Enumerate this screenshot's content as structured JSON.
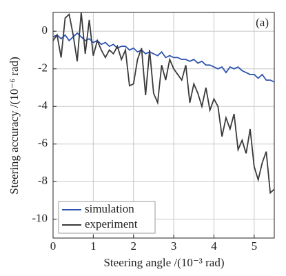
{
  "chart_data": {
    "type": "line",
    "annotation": "(a)",
    "x_label": "Steering angle /(10⁻³ rad)",
    "y_label": "Steering accuracy /(10⁻⁶ rad)",
    "x": [
      0,
      0.1,
      0.2,
      0.3,
      0.4,
      0.5,
      0.6,
      0.7,
      0.8,
      0.9,
      1.0,
      1.1,
      1.2,
      1.3,
      1.4,
      1.5,
      1.6,
      1.7,
      1.8,
      1.9,
      2.0,
      2.1,
      2.2,
      2.3,
      2.4,
      2.5,
      2.6,
      2.7,
      2.8,
      2.9,
      3.0,
      3.1,
      3.2,
      3.3,
      3.4,
      3.5,
      3.6,
      3.7,
      3.8,
      3.9,
      4.0,
      4.1,
      4.2,
      4.3,
      4.4,
      4.5,
      4.6,
      4.7,
      4.8,
      4.9,
      5.0,
      5.1,
      5.2,
      5.3,
      5.4,
      5.5
    ],
    "series": [
      {
        "name": "simulation",
        "color": "#2f55b0",
        "values": [
          -0.3,
          -0.2,
          -0.4,
          -0.2,
          -0.5,
          -0.3,
          -0.1,
          -0.3,
          -0.5,
          -0.4,
          -0.6,
          -0.5,
          -0.7,
          -0.6,
          -0.8,
          -0.7,
          -0.9,
          -0.8,
          -0.8,
          -1.0,
          -0.9,
          -1.1,
          -1.0,
          -1.2,
          -1.1,
          -1.2,
          -1.3,
          -1.1,
          -1.4,
          -1.3,
          -1.4,
          -1.4,
          -1.5,
          -1.5,
          -1.6,
          -1.5,
          -1.7,
          -1.6,
          -1.8,
          -1.8,
          -1.9,
          -2.0,
          -1.9,
          -2.2,
          -1.9,
          -2.0,
          -1.9,
          -2.1,
          -2.2,
          -2.3,
          -2.3,
          -2.5,
          -2.3,
          -2.6,
          -2.6,
          -2.7
        ]
      },
      {
        "name": "experiment",
        "color": "#3a3a3a",
        "values": [
          -0.5,
          -0.2,
          -1.4,
          0.7,
          0.9,
          -0.2,
          -1.6,
          1.0,
          -1.2,
          0.6,
          -1.3,
          -0.5,
          -1.0,
          -1.4,
          -1.0,
          -1.2,
          -0.8,
          -1.5,
          -1.0,
          -2.9,
          -2.8,
          -1.5,
          -0.9,
          -3.4,
          -1.0,
          -3.3,
          -3.8,
          -1.8,
          -2.6,
          -1.5,
          -2.0,
          -2.3,
          -2.6,
          -1.8,
          -3.8,
          -2.8,
          -3.3,
          -4.0,
          -3.0,
          -4.2,
          -3.6,
          -4.0,
          -5.6,
          -4.6,
          -5.2,
          -4.4,
          -6.3,
          -5.8,
          -6.5,
          -5.2,
          -7.2,
          -7.9,
          -7.0,
          -6.4,
          -8.6,
          -8.4
        ]
      }
    ],
    "xlim": [
      0,
      5.5
    ],
    "ylim": [
      -11,
      1
    ],
    "xticks": [
      0,
      1,
      2,
      3,
      4,
      5
    ],
    "yticks": [
      -10,
      -8,
      -6,
      -4,
      -2,
      0
    ],
    "grid": true
  }
}
